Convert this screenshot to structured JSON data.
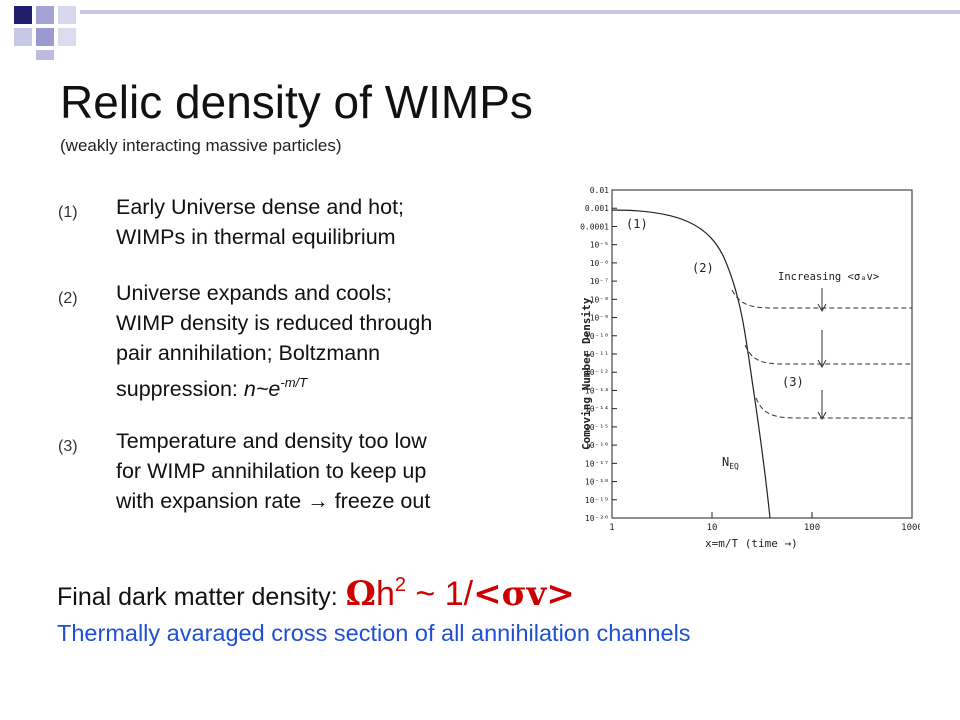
{
  "slide": {
    "title": "Relic density of WIMPs",
    "subtitle": "(weakly interacting massive particles)"
  },
  "items": [
    {
      "num": "(1)",
      "lines": [
        "Early Universe dense and hot;",
        "WIMPs in thermal equilibrium"
      ]
    },
    {
      "num": "(2)",
      "lines": [
        "Universe expands and cools;",
        "WIMP density is reduced through",
        "pair annihilation; Boltzmann"
      ],
      "last_prefix": "suppression: ",
      "last_math": "n~e",
      "last_sup": "-m/T"
    },
    {
      "num": "(3)",
      "lines": [
        "Temperature and density too low",
        "for WIMP annihilation to keep up",
        "with expansion rate → freeze out"
      ]
    }
  ],
  "figure": {
    "ylabel": "Comoving Number Density",
    "xlabel": "x=m/T (time →)",
    "x_ticks": [
      "1",
      "10",
      "100",
      "1000"
    ],
    "y_ticks": [
      "0.01",
      "0.001",
      "0.0001",
      "10⁻⁵",
      "10⁻⁶",
      "10⁻⁷",
      "10⁻⁸",
      "10⁻⁹",
      "10⁻¹⁰",
      "10⁻¹¹",
      "10⁻¹²",
      "10⁻¹³",
      "10⁻¹⁴",
      "10⁻¹⁵",
      "10⁻¹⁶",
      "10⁻¹⁷",
      "10⁻¹⁸",
      "10⁻¹⁹",
      "10⁻²⁰"
    ],
    "label_1": "(1)",
    "label_2": "(2)",
    "label_3": "(3)",
    "increasing": "Increasing <σₐv>",
    "neq": "N",
    "neq_sub": "EQ"
  },
  "final": {
    "label": "Final dark matter density:",
    "omega": "Ω",
    "h": "h",
    "exp": "2",
    "tilde": " ~ 1/",
    "sv": "<σv>"
  },
  "footer_note": "Thermally avaraged cross section of all annihilation channels",
  "colors": {
    "accent_navy": "#1f1f6e",
    "accent_lavender": "#9999cc",
    "formula_red": "#cc0000",
    "note_blue": "#1f4fd6"
  }
}
